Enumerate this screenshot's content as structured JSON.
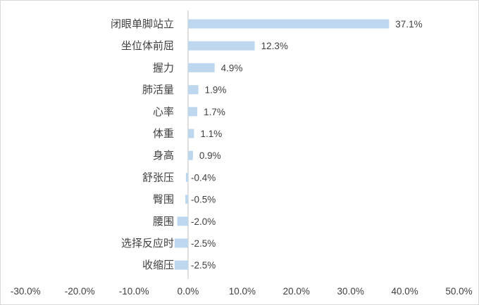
{
  "chart_data": {
    "type": "bar",
    "orientation": "horizontal",
    "categories": [
      "闭眼单脚站立",
      "坐位体前屈",
      "握力",
      "肺活量",
      "心率",
      "体重",
      "身高",
      "舒张压",
      "臀围",
      "腰围",
      "选择反应时",
      "收缩压"
    ],
    "values": [
      37.1,
      12.3,
      4.9,
      1.9,
      1.7,
      1.1,
      0.9,
      -0.4,
      -0.5,
      -2.0,
      -2.5,
      -2.5
    ],
    "data_labels": [
      "37.1%",
      "12.3%",
      "4.9%",
      "1.9%",
      "1.7%",
      "1.1%",
      "0.9%",
      "-0.4%",
      "-0.5%",
      "-2.0%",
      "-2.5%",
      "-2.5%"
    ],
    "xlim": [
      -30,
      50
    ],
    "x_ticks": [
      -30,
      -20,
      -10,
      0,
      10,
      20,
      30,
      40,
      50
    ],
    "x_tick_labels": [
      "-30.0%",
      "-20.0%",
      "-10.0%",
      "0.0%",
      "10.0%",
      "20.0%",
      "30.0%",
      "40.0%",
      "50.0%"
    ],
    "title": "",
    "xlabel": "",
    "ylabel": "",
    "grid": false,
    "legend": "none",
    "bar_color": "#bdd7ee",
    "text_color": "#404040",
    "axis_color": "#bfbfbf"
  }
}
